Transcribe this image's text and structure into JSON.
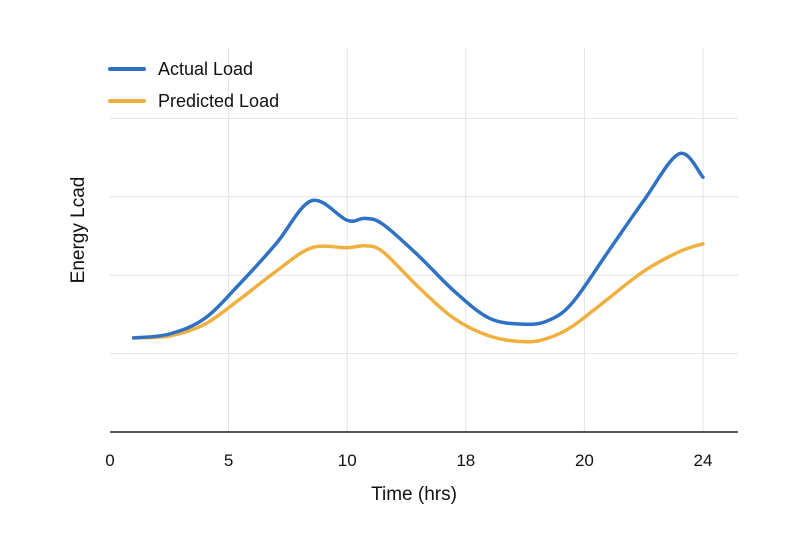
{
  "chart_data": {
    "type": "line",
    "title": "",
    "xlabel": "Time (hrs)",
    "ylabel": "Energy Lcad",
    "x_tick_labels": [
      "0",
      "5",
      "10",
      "18",
      "20",
      "24"
    ],
    "x_tick_positions": [
      0,
      2,
      4,
      6,
      8,
      10
    ],
    "xlim": [
      0,
      10.4
    ],
    "ylim": [
      0,
      10
    ],
    "y_tick_values": [
      2,
      4,
      6,
      8
    ],
    "grid": true,
    "legend_position": "top-left",
    "series": [
      {
        "name": "Actual Load",
        "color": "#2f72c4",
        "x": [
          0.4,
          1.0,
          1.6,
          2.2,
          2.8,
          3.4,
          4.0,
          4.3,
          4.6,
          5.2,
          5.8,
          6.4,
          7.0,
          7.4,
          7.8,
          8.4,
          9.0,
          9.6,
          10.0
        ],
        "y": [
          2.4,
          2.5,
          2.9,
          3.8,
          4.8,
          5.9,
          5.4,
          5.45,
          5.3,
          4.5,
          3.6,
          2.9,
          2.75,
          2.85,
          3.3,
          4.6,
          5.9,
          7.1,
          6.5
        ]
      },
      {
        "name": "Predicted Load",
        "color": "#f0b040",
        "x": [
          0.4,
          1.0,
          1.6,
          2.2,
          2.8,
          3.4,
          4.0,
          4.3,
          4.6,
          5.2,
          5.8,
          6.4,
          7.0,
          7.4,
          7.8,
          8.4,
          9.0,
          9.6,
          10.0
        ],
        "y": [
          2.4,
          2.45,
          2.75,
          3.4,
          4.1,
          4.7,
          4.7,
          4.75,
          4.6,
          3.7,
          2.9,
          2.45,
          2.3,
          2.4,
          2.7,
          3.4,
          4.1,
          4.6,
          4.8
        ]
      }
    ]
  }
}
